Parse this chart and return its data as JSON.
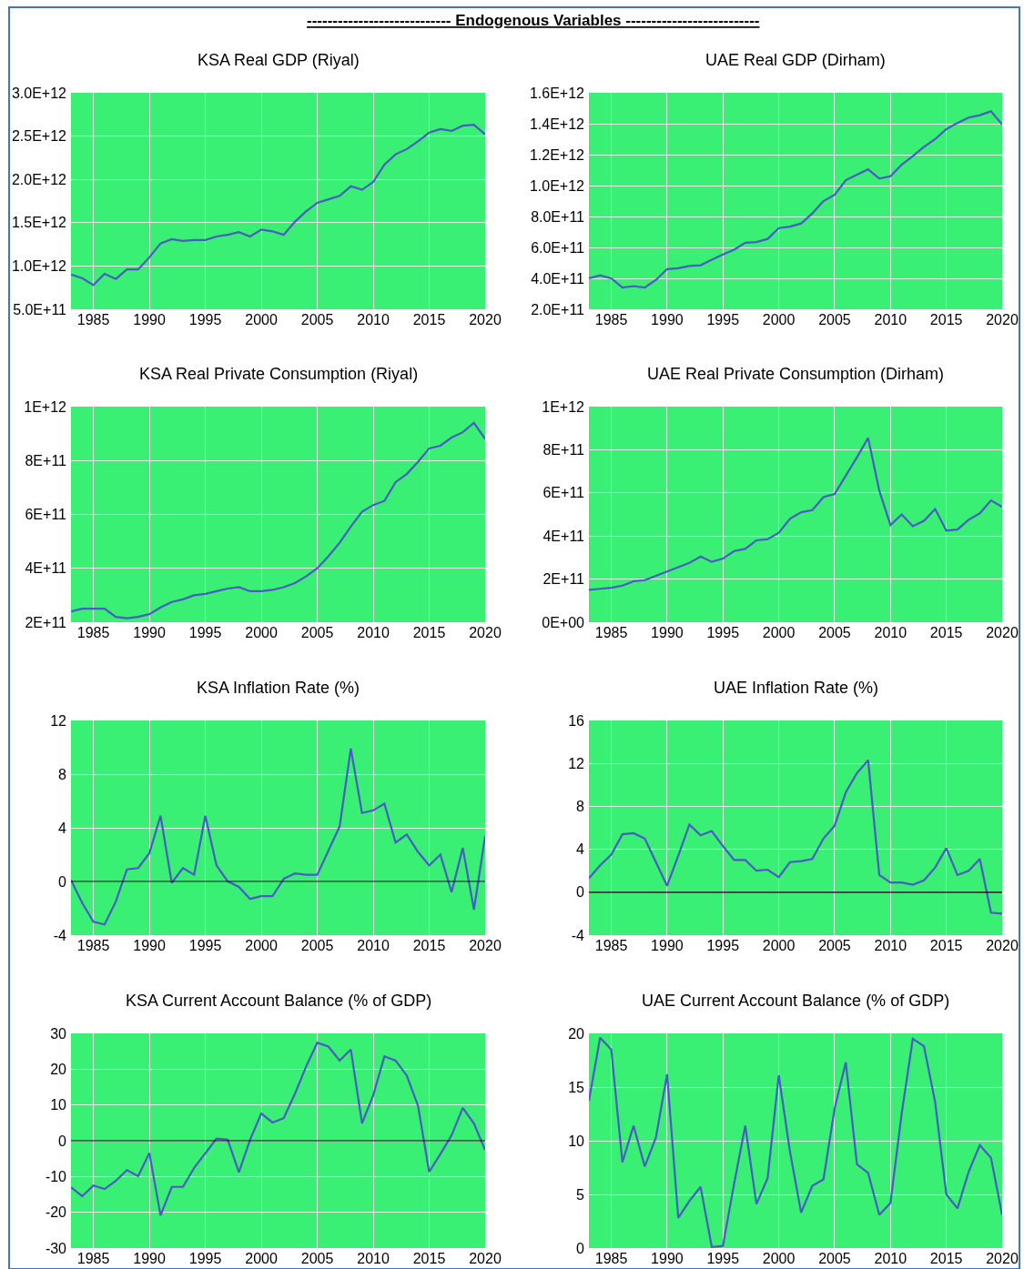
{
  "chart_data": [
    {
      "type": "line",
      "title": "KSA Real GDP (Riyal)",
      "annotations": [
        "---------------------------- Endogenous Variables --------------------------"
      ],
      "x": [
        1983,
        1984,
        1985,
        1986,
        1987,
        1988,
        1989,
        1990,
        1991,
        1992,
        1993,
        1994,
        1995,
        1996,
        1997,
        1998,
        1999,
        2000,
        2001,
        2002,
        2003,
        2004,
        2005,
        2006,
        2007,
        2008,
        2009,
        2010,
        2011,
        2012,
        2013,
        2014,
        2015,
        2016,
        2017,
        2018,
        2019,
        2020
      ],
      "series": [
        {
          "color": "#4a5cc4",
          "values": [
            900000000000.0,
            860000000000.0,
            780000000000.0,
            910000000000.0,
            850000000000.0,
            960000000000.0,
            960000000000.0,
            1100000000000.0,
            1260000000000.0,
            1310000000000.0,
            1290000000000.0,
            1300000000000.0,
            1300000000000.0,
            1340000000000.0,
            1360000000000.0,
            1390000000000.0,
            1340000000000.0,
            1420000000000.0,
            1400000000000.0,
            1360000000000.0,
            1510000000000.0,
            1630000000000.0,
            1730000000000.0,
            1770000000000.0,
            1810000000000.0,
            1920000000000.0,
            1880000000000.0,
            1970000000000.0,
            2170000000000.0,
            2290000000000.0,
            2350000000000.0,
            2440000000000.0,
            2540000000000.0,
            2580000000000.0,
            2560000000000.0,
            2620000000000.0,
            2630000000000.0,
            2520000000000.0
          ]
        }
      ],
      "xlim": [
        1983,
        2020
      ],
      "xticks": [
        1985,
        1990,
        1995,
        2000,
        2005,
        2010,
        2015,
        2020
      ],
      "ylim": [
        500000000000.0,
        3000000000000.0
      ],
      "yticks": [
        {
          "value": 500000000000.0,
          "label": "5.0E+11"
        },
        {
          "value": 1000000000000.0,
          "label": "1.0E+12"
        },
        {
          "value": 1500000000000.0,
          "label": "1.5E+12"
        },
        {
          "value": 2000000000000.0,
          "label": "2.0E+12"
        },
        {
          "value": 2500000000000.0,
          "label": "2.5E+12"
        },
        {
          "value": 3000000000000.0,
          "label": "3.0E+12"
        }
      ],
      "grid": true
    },
    {
      "type": "line",
      "title": "UAE Real GDP (Dirham)",
      "x": [
        1983,
        1984,
        1985,
        1986,
        1987,
        1988,
        1989,
        1990,
        1991,
        1992,
        1993,
        1994,
        1995,
        1996,
        1997,
        1998,
        1999,
        2000,
        2001,
        2002,
        2003,
        2004,
        2005,
        2006,
        2007,
        2008,
        2009,
        2010,
        2011,
        2012,
        2013,
        2014,
        2015,
        2016,
        2017,
        2018,
        2019,
        2020
      ],
      "series": [
        {
          "color": "#4a5cc4",
          "values": [
            400000000000.0,
            420000000000.0,
            400000000000.0,
            340000000000.0,
            350000000000.0,
            340000000000.0,
            390000000000.0,
            460000000000.0,
            465000000000.0,
            480000000000.0,
            485000000000.0,
            520000000000.0,
            555000000000.0,
            585000000000.0,
            630000000000.0,
            635000000000.0,
            655000000000.0,
            725000000000.0,
            735000000000.0,
            755000000000.0,
            820000000000.0,
            900000000000.0,
            940000000000.0,
            1035000000000.0,
            1070000000000.0,
            1105000000000.0,
            1045000000000.0,
            1060000000000.0,
            1135000000000.0,
            1190000000000.0,
            1250000000000.0,
            1300000000000.0,
            1365000000000.0,
            1405000000000.0,
            1440000000000.0,
            1455000000000.0,
            1480000000000.0,
            1395000000000.0
          ]
        }
      ],
      "xlim": [
        1983,
        2020
      ],
      "xticks": [
        1985,
        1990,
        1995,
        2000,
        2005,
        2010,
        2015,
        2020
      ],
      "ylim": [
        200000000000.0,
        1600000000000.0
      ],
      "yticks": [
        {
          "value": 200000000000.0,
          "label": "2.0E+11"
        },
        {
          "value": 400000000000.0,
          "label": "4.0E+11"
        },
        {
          "value": 600000000000.0,
          "label": "6.0E+11"
        },
        {
          "value": 800000000000.0,
          "label": "8.0E+11"
        },
        {
          "value": 1000000000000.0,
          "label": "1.0E+12"
        },
        {
          "value": 1200000000000.0,
          "label": "1.2E+12"
        },
        {
          "value": 1400000000000.0,
          "label": "1.4E+12"
        },
        {
          "value": 1600000000000.0,
          "label": "1.6E+12"
        }
      ],
      "grid": true
    },
    {
      "type": "line",
      "title": "KSA Real Private Consumption (Riyal)",
      "x": [
        1983,
        1984,
        1985,
        1986,
        1987,
        1988,
        1989,
        1990,
        1991,
        1992,
        1993,
        1994,
        1995,
        1996,
        1997,
        1998,
        1999,
        2000,
        2001,
        2002,
        2003,
        2004,
        2005,
        2006,
        2007,
        2008,
        2009,
        2010,
        2011,
        2012,
        2013,
        2014,
        2015,
        2016,
        2017,
        2018,
        2019,
        2020
      ],
      "series": [
        {
          "color": "#4a5cc4",
          "values": [
            240000000000.0,
            250000000000.0,
            250000000000.0,
            250000000000.0,
            220000000000.0,
            215000000000.0,
            220000000000.0,
            230000000000.0,
            255000000000.0,
            275000000000.0,
            285000000000.0,
            300000000000.0,
            305000000000.0,
            315000000000.0,
            325000000000.0,
            330000000000.0,
            315000000000.0,
            315000000000.0,
            320000000000.0,
            330000000000.0,
            345000000000.0,
            370000000000.0,
            400000000000.0,
            445000000000.0,
            495000000000.0,
            555000000000.0,
            610000000000.0,
            635000000000.0,
            650000000000.0,
            720000000000.0,
            750000000000.0,
            795000000000.0,
            845000000000.0,
            855000000000.0,
            885000000000.0,
            905000000000.0,
            940000000000.0,
            880000000000.0
          ]
        }
      ],
      "xlim": [
        1983,
        2020
      ],
      "xticks": [
        1985,
        1990,
        1995,
        2000,
        2005,
        2010,
        2015,
        2020
      ],
      "ylim": [
        200000000000.0,
        1000000000000.0
      ],
      "yticks": [
        {
          "value": 200000000000.0,
          "label": "2E+11"
        },
        {
          "value": 400000000000.0,
          "label": "4E+11"
        },
        {
          "value": 600000000000.0,
          "label": "6E+11"
        },
        {
          "value": 800000000000.0,
          "label": "8E+11"
        },
        {
          "value": 1000000000000.0,
          "label": "1E+12"
        }
      ],
      "grid": true
    },
    {
      "type": "line",
      "title": "UAE Real Private Consumption (Dirham)",
      "x": [
        1983,
        1984,
        1985,
        1986,
        1987,
        1988,
        1989,
        1990,
        1991,
        1992,
        1993,
        1994,
        1995,
        1996,
        1997,
        1998,
        1999,
        2000,
        2001,
        2002,
        2003,
        2004,
        2005,
        2006,
        2007,
        2008,
        2009,
        2010,
        2011,
        2012,
        2013,
        2014,
        2015,
        2016,
        2017,
        2018,
        2019,
        2020
      ],
      "series": [
        {
          "color": "#4a5cc4",
          "values": [
            150000000000.0,
            155000000000.0,
            160000000000.0,
            170000000000.0,
            190000000000.0,
            195000000000.0,
            215000000000.0,
            235000000000.0,
            255000000000.0,
            275000000000.0,
            305000000000.0,
            280000000000.0,
            295000000000.0,
            330000000000.0,
            340000000000.0,
            380000000000.0,
            385000000000.0,
            415000000000.0,
            480000000000.0,
            510000000000.0,
            520000000000.0,
            580000000000.0,
            595000000000.0,
            680000000000.0,
            765000000000.0,
            855000000000.0,
            610000000000.0,
            450000000000.0,
            500000000000.0,
            445000000000.0,
            470000000000.0,
            525000000000.0,
            425000000000.0,
            430000000000.0,
            475000000000.0,
            505000000000.0,
            565000000000.0,
            535000000000.0
          ]
        }
      ],
      "xlim": [
        1983,
        2020
      ],
      "xticks": [
        1985,
        1990,
        1995,
        2000,
        2005,
        2010,
        2015,
        2020
      ],
      "ylim": [
        0,
        1000000000000.0
      ],
      "yticks": [
        {
          "value": 0,
          "label": "0E+00"
        },
        {
          "value": 200000000000.0,
          "label": "2E+11"
        },
        {
          "value": 400000000000.0,
          "label": "4E+11"
        },
        {
          "value": 600000000000.0,
          "label": "6E+11"
        },
        {
          "value": 800000000000.0,
          "label": "8E+11"
        },
        {
          "value": 1000000000000.0,
          "label": "1E+12"
        }
      ],
      "grid": true
    },
    {
      "type": "line",
      "title": "KSA Inflation Rate (%)",
      "x": [
        1983,
        1984,
        1985,
        1986,
        1987,
        1988,
        1989,
        1990,
        1991,
        1992,
        1993,
        1994,
        1995,
        1996,
        1997,
        1998,
        1999,
        2000,
        2001,
        2002,
        2003,
        2004,
        2005,
        2006,
        2007,
        2008,
        2009,
        2010,
        2011,
        2012,
        2013,
        2014,
        2015,
        2016,
        2017,
        2018,
        2019,
        2020
      ],
      "series": [
        {
          "color": "#4a5cc4",
          "values": [
            0.1,
            -1.6,
            -3.0,
            -3.2,
            -1.5,
            0.9,
            1.0,
            2.1,
            4.9,
            -0.1,
            1.0,
            0.5,
            4.9,
            1.2,
            0.0,
            -0.4,
            -1.3,
            -1.1,
            -1.1,
            0.2,
            0.6,
            0.5,
            0.5,
            2.3,
            4.1,
            9.9,
            5.1,
            5.3,
            5.8,
            2.9,
            3.5,
            2.2,
            1.2,
            2.0,
            -0.8,
            2.5,
            -2.1,
            3.4
          ]
        }
      ],
      "xlim": [
        1983,
        2020
      ],
      "xticks": [
        1985,
        1990,
        1995,
        2000,
        2005,
        2010,
        2015,
        2020
      ],
      "ylim": [
        -4,
        12
      ],
      "yticks": [
        -4,
        0,
        4,
        8,
        12
      ],
      "grid": true,
      "ref_lines": [
        {
          "axis": "y",
          "value": 0,
          "color": "#000000"
        }
      ]
    },
    {
      "type": "line",
      "title": "UAE Inflation Rate (%)",
      "x": [
        1983,
        1984,
        1985,
        1986,
        1987,
        1988,
        1989,
        1990,
        1991,
        1992,
        1993,
        1994,
        1995,
        1996,
        1997,
        1998,
        1999,
        2000,
        2001,
        2002,
        2003,
        2004,
        2005,
        2006,
        2007,
        2008,
        2009,
        2010,
        2011,
        2012,
        2013,
        2014,
        2015,
        2016,
        2017,
        2018,
        2019,
        2020
      ],
      "series": [
        {
          "color": "#4a5cc4",
          "values": [
            1.3,
            2.5,
            3.5,
            5.4,
            5.5,
            5.0,
            2.8,
            0.6,
            3.4,
            6.3,
            5.3,
            5.7,
            4.3,
            3.0,
            3.0,
            2.0,
            2.1,
            1.4,
            2.8,
            2.9,
            3.1,
            5.0,
            6.2,
            9.3,
            11.1,
            12.3,
            1.6,
            0.9,
            0.9,
            0.7,
            1.1,
            2.3,
            4.1,
            1.6,
            2.0,
            3.1,
            -1.9,
            -2.0
          ]
        }
      ],
      "xlim": [
        1983,
        2020
      ],
      "xticks": [
        1985,
        1990,
        1995,
        2000,
        2005,
        2010,
        2015,
        2020
      ],
      "ylim": [
        -4,
        16
      ],
      "yticks": [
        -4,
        0,
        4,
        8,
        12,
        16
      ],
      "grid": true,
      "ref_lines": [
        {
          "axis": "y",
          "value": 0,
          "color": "#000000"
        }
      ]
    },
    {
      "type": "line",
      "title": "KSA Current Account Balance (% of GDP)",
      "x": [
        1983,
        1984,
        1985,
        1986,
        1987,
        1988,
        1989,
        1990,
        1991,
        1992,
        1993,
        1994,
        1995,
        1996,
        1997,
        1998,
        1999,
        2000,
        2001,
        2002,
        2003,
        2004,
        2005,
        2006,
        2007,
        2008,
        2009,
        2010,
        2011,
        2012,
        2013,
        2014,
        2015,
        2016,
        2017,
        2018,
        2019,
        2020
      ],
      "series": [
        {
          "color": "#4a5cc4",
          "values": [
            -13.0,
            -15.5,
            -12.5,
            -13.5,
            -11.2,
            -8.2,
            -9.9,
            -3.4,
            -20.9,
            -12.9,
            -12.9,
            -7.6,
            -3.5,
            0.6,
            0.3,
            -8.8,
            0.3,
            7.6,
            5.1,
            6.3,
            13.1,
            20.7,
            27.4,
            26.3,
            22.4,
            25.5,
            4.9,
            12.7,
            23.6,
            22.4,
            18.2,
            9.8,
            -8.7,
            -3.7,
            1.5,
            9.2,
            4.8,
            -2.6
          ]
        }
      ],
      "xlim": [
        1983,
        2020
      ],
      "xticks": [
        1985,
        1990,
        1995,
        2000,
        2005,
        2010,
        2015,
        2020
      ],
      "ylim": [
        -30,
        30
      ],
      "yticks": [
        -30,
        -20,
        -10,
        0,
        10,
        20,
        30
      ],
      "grid": true,
      "ref_lines": [
        {
          "axis": "y",
          "value": 0,
          "color": "#000000"
        }
      ]
    },
    {
      "type": "line",
      "title": "UAE Current Account Balance (% of GDP)",
      "x": [
        1983,
        1984,
        1985,
        1986,
        1987,
        1988,
        1989,
        1990,
        1991,
        1992,
        1993,
        1994,
        1995,
        1996,
        1997,
        1998,
        1999,
        2000,
        2001,
        2002,
        2003,
        2004,
        2005,
        2006,
        2007,
        2008,
        2009,
        2010,
        2011,
        2012,
        2013,
        2014,
        2015,
        2016,
        2017,
        2018,
        2019,
        2020
      ],
      "series": [
        {
          "color": "#4a5cc4",
          "values": [
            13.7,
            19.6,
            18.5,
            8.0,
            11.4,
            7.6,
            10.3,
            16.2,
            2.8,
            4.4,
            5.7,
            0.1,
            0.2,
            6.0,
            11.4,
            4.1,
            6.5,
            16.1,
            9.0,
            3.3,
            5.8,
            6.4,
            13.0,
            17.3,
            7.8,
            7.0,
            3.1,
            4.2,
            12.5,
            19.5,
            18.8,
            13.6,
            5.0,
            3.7,
            7.1,
            9.6,
            8.4,
            3.1
          ]
        }
      ],
      "xlim": [
        1983,
        2020
      ],
      "xticks": [
        1985,
        1990,
        1995,
        2000,
        2005,
        2010,
        2015,
        2020
      ],
      "ylim": [
        0,
        20
      ],
      "yticks": [
        0,
        5,
        10,
        15,
        20
      ],
      "grid": true
    }
  ]
}
